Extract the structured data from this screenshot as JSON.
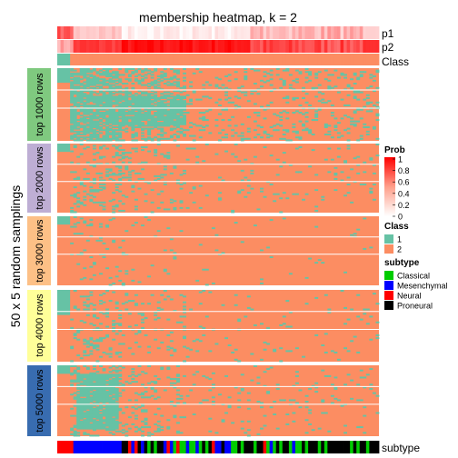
{
  "title": "membership heatmap, k = 2",
  "ylabel": "50 x 5 random samplings",
  "row_groups": [
    "top 1000 rows",
    "top 2000 rows",
    "top 3000 rows",
    "top 4000 rows",
    "top 5000 rows"
  ],
  "annotation_labels": {
    "p1": "p1",
    "p2": "p2",
    "class": "Class",
    "subtype": "subtype"
  },
  "legend": {
    "prob_title": "Prob",
    "prob_ticks": [
      "1",
      "0.8",
      "0.6",
      "0.4",
      "0.2",
      "0"
    ],
    "class_title": "Class",
    "class_items": [
      {
        "label": "1",
        "color": "#66C2A5"
      },
      {
        "label": "2",
        "color": "#FC8D62"
      }
    ],
    "subtype_title": "subtype",
    "subtype_items": [
      {
        "label": "Classical",
        "color": "#00CC00"
      },
      {
        "label": "Mesenchymal",
        "color": "#0000FF"
      },
      {
        "label": "Neural",
        "color": "#FF0000"
      },
      {
        "label": "Proneural",
        "color": "#000000"
      }
    ]
  },
  "colors": {
    "class1": "#66C2A5",
    "class2": "#FC8D62",
    "group_strips": [
      "#7FC97F",
      "#BEAED4",
      "#FDC086",
      "#FFFF99",
      "#386CB0"
    ]
  },
  "chart_data": {
    "type": "heatmap",
    "n_columns": 100,
    "value_legend": {
      "name": "Prob",
      "range": [
        0,
        1
      ]
    },
    "class_per_column": {
      "1": [
        0,
        4
      ],
      "2": [
        5,
        99
      ]
    },
    "p1_trend": "high at left (columns 0-4), near 0 elsewhere",
    "p2_trend": "low at left, rising to ~1 in the middle columns",
    "subtype_order": [
      "Neural",
      "Mesenchymal",
      "Classical",
      "Proneural"
    ],
    "rows_per_group": 50,
    "groups": 5,
    "summary": "membership matrix; columns 0-4 assigned class 1 in most samplings, remaining columns mostly class 2 with scattered class 1 cells"
  }
}
